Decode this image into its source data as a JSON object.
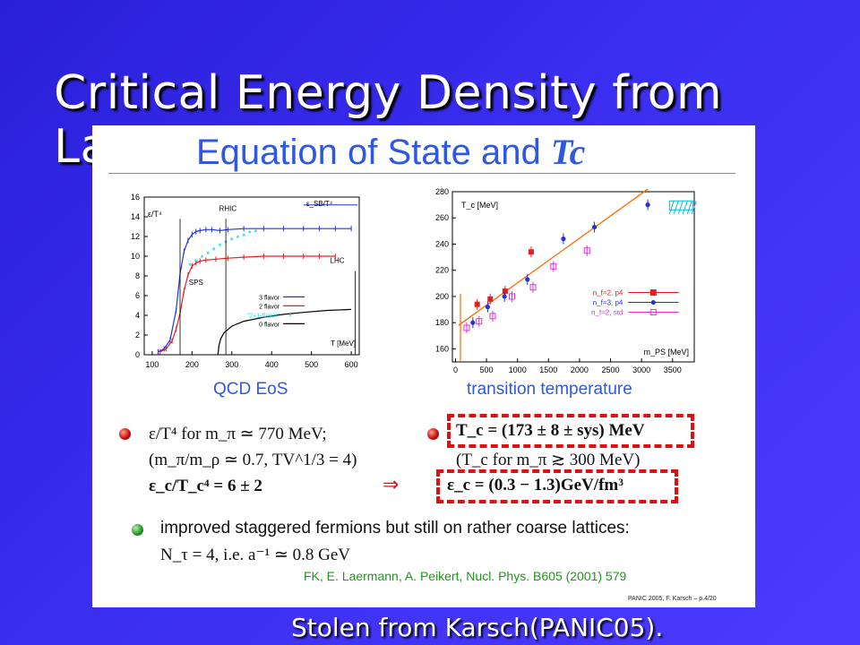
{
  "slide": {
    "title": "Critical Energy Density from Lattice",
    "caption": "Stolen from Karsch(PANIC05)."
  },
  "panel": {
    "title_text": "Equation of State and ",
    "title_symbol": "Tc",
    "footer": "PANIC 2005, F. Karsch – p.4/20"
  },
  "bullets": {
    "left_line1": "ε/T⁴ for m_π ≃ 770 MeV;",
    "left_line2": "(m_π/m_ρ ≃ 0.7, TV^1/3 = 4)",
    "left_line3": "ε_c/T_c⁴ = 6 ± 2",
    "right_line1": "T_c = (173 ± 8 ± sys) MeV",
    "right_line2": "(T_c for m_π ≳ 300 MeV)",
    "right_line3": "ε_c = (0.3 − 1.3)GeV/fm³",
    "implies": "⇒",
    "green_line1": "improved staggered fermions but still on rather coarse lattices:",
    "green_line2": "N_τ = 4, i.e. a⁻¹ ≃ 0.8 GeV",
    "reference": "FK, E. Laermann, A. Peikert, Nucl. Phys. B605 (2001) 579"
  },
  "colors": {
    "bg_start": "#2a1fd8",
    "bg_end": "#4c3bff",
    "panel_title": "#2f58e0",
    "dash": "#e01010",
    "three_flavor": "#2233dd",
    "two_flavor": "#e02020",
    "two_plus_one": "#20e0e8",
    "zero_flavor": "#000000",
    "fit_line": "#ff6a00",
    "magenta": "#e030e0"
  },
  "chart_data": [
    {
      "type": "line",
      "caption": "QCD EoS",
      "ylabel": "ε/T⁴",
      "xlabel": "T [MeV]",
      "xlim": [
        80,
        620
      ],
      "ylim": [
        0,
        16
      ],
      "xticks": [
        100,
        200,
        300,
        400,
        500,
        600
      ],
      "yticks": [
        0,
        2,
        4,
        6,
        8,
        10,
        12,
        14,
        16
      ],
      "annotations": [
        {
          "text": "RHIC",
          "x": 290,
          "y": 14.6
        },
        {
          "text": "SPS",
          "x": 210,
          "y": 7.1
        },
        {
          "text": "LHC",
          "x": 565,
          "y": 9.3
        },
        {
          "text": "ε_SB/T⁴",
          "x": 520,
          "y": 15.1
        }
      ],
      "sb_limit": 15.2,
      "series": [
        {
          "name": "3 flavor",
          "x": [
            115,
            130,
            145,
            160,
            170,
            180,
            190,
            200,
            210,
            220,
            235,
            250,
            270,
            290,
            330,
            380,
            430,
            480,
            520,
            560,
            600
          ],
          "y": [
            0.3,
            0.6,
            1.5,
            4.5,
            8.2,
            10.5,
            11.6,
            12.2,
            12.5,
            12.6,
            12.7,
            12.7,
            12.6,
            12.7,
            12.8,
            12.8,
            12.8,
            12.8,
            12.8,
            12.8,
            12.8
          ]
        },
        {
          "name": "2 flavor",
          "x": [
            120,
            135,
            150,
            160,
            170,
            180,
            190,
            200,
            210,
            220,
            235,
            260,
            290,
            330,
            380,
            430,
            480,
            520,
            560
          ],
          "y": [
            0.3,
            0.6,
            1.4,
            2.6,
            4.2,
            6.5,
            8.1,
            9.0,
            9.3,
            9.5,
            9.6,
            9.7,
            9.8,
            9.9,
            10.0,
            10.0,
            10.0,
            10.0,
            10.0
          ]
        },
        {
          "name": "\"2+1-flavor\"",
          "x": [
            195,
            210,
            225,
            240,
            255,
            270,
            285,
            300,
            315,
            330,
            345,
            360
          ],
          "y": [
            9.0,
            9.4,
            9.8,
            10.2,
            10.6,
            11.0,
            11.3,
            11.6,
            11.8,
            12.0,
            12.3,
            12.4
          ]
        },
        {
          "name": "0 flavor",
          "x": [
            265,
            268,
            272,
            280,
            300,
            330,
            380,
            430,
            480,
            540,
            600
          ],
          "y": [
            0,
            1.0,
            1.6,
            2.2,
            2.9,
            3.4,
            3.8,
            4.1,
            4.3,
            4.5,
            4.6
          ]
        }
      ]
    },
    {
      "type": "scatter",
      "caption": "transition temperature",
      "ylabel": "T_c [MeV]",
      "xlabel": "m_PS [MeV]",
      "xlim": [
        -50,
        3850
      ],
      "ylim": [
        150,
        280
      ],
      "xticks": [
        0,
        500,
        1000,
        1500,
        2000,
        2500,
        3000,
        3500
      ],
      "yticks": [
        160,
        180,
        200,
        220,
        240,
        260,
        280
      ],
      "fit_line": {
        "x": [
          50,
          3100
        ],
        "y": [
          178,
          282
        ]
      },
      "series": [
        {
          "name": "n_f=2, p4",
          "x": [
            350,
            560,
            800,
            1220
          ],
          "y": [
            194,
            198,
            204,
            234
          ]
        },
        {
          "name": "n_f=3, p4",
          "x": [
            280,
            520,
            790,
            1160,
            1740,
            2240,
            3100
          ],
          "y": [
            180,
            192,
            200,
            213,
            244,
            253,
            270
          ]
        },
        {
          "name": "n_f=2, std",
          "x": [
            180,
            380,
            600,
            910,
            1250,
            1580,
            2120
          ],
          "y": [
            176,
            181,
            185,
            200,
            207,
            223,
            235
          ]
        }
      ]
    }
  ]
}
